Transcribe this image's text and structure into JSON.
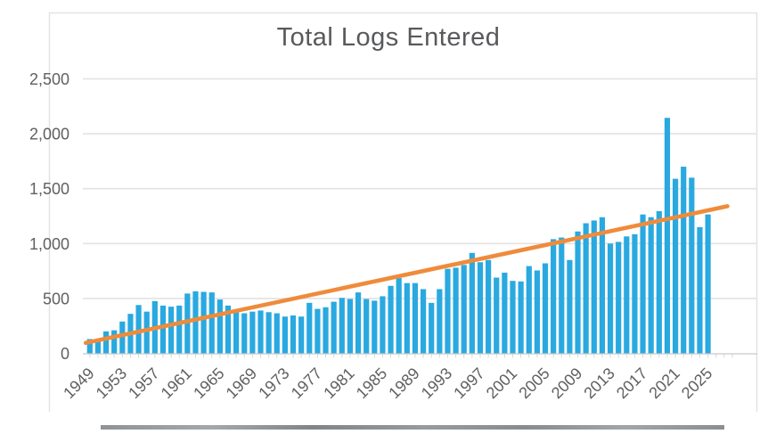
{
  "chart_data": {
    "type": "bar",
    "title": "Total Logs Entered",
    "xlabel": "",
    "ylabel": "",
    "ylim": [
      0,
      2500
    ],
    "grid": "horizontal",
    "legend": "none",
    "y_ticks": [
      0,
      500,
      1000,
      1500,
      2000,
      2500
    ],
    "y_tick_labels": [
      "0",
      "500",
      "1,000",
      "1,500",
      "2,000",
      "2,500"
    ],
    "x_tick_labels": [
      "1949",
      "1953",
      "1957",
      "1961",
      "1965",
      "1969",
      "1973",
      "1977",
      "1981",
      "1985",
      "1989",
      "1993",
      "1997",
      "2001",
      "2005",
      "2009",
      "2013",
      "2017",
      "2021",
      "2025"
    ],
    "categories": [
      1949,
      1950,
      1951,
      1952,
      1953,
      1954,
      1955,
      1956,
      1957,
      1958,
      1959,
      1960,
      1961,
      1962,
      1963,
      1964,
      1965,
      1966,
      1967,
      1968,
      1969,
      1970,
      1971,
      1972,
      1973,
      1974,
      1975,
      1976,
      1977,
      1978,
      1979,
      1980,
      1981,
      1982,
      1983,
      1984,
      1985,
      1986,
      1987,
      1988,
      1989,
      1990,
      1991,
      1992,
      1993,
      1994,
      1995,
      1996,
      1997,
      1998,
      1999,
      2000,
      2001,
      2002,
      2003,
      2004,
      2005,
      2006,
      2007,
      2008,
      2009,
      2010,
      2011,
      2012,
      2013,
      2014,
      2015,
      2016,
      2017,
      2018,
      2019,
      2020,
      2021,
      2022,
      2023,
      2024,
      2025
    ],
    "values": [
      130,
      130,
      200,
      210,
      290,
      360,
      440,
      380,
      475,
      435,
      425,
      435,
      545,
      565,
      560,
      555,
      490,
      435,
      380,
      365,
      380,
      390,
      375,
      365,
      335,
      345,
      335,
      460,
      405,
      420,
      470,
      505,
      495,
      555,
      495,
      480,
      520,
      615,
      685,
      640,
      640,
      585,
      460,
      585,
      770,
      780,
      805,
      915,
      830,
      850,
      690,
      735,
      660,
      655,
      795,
      755,
      820,
      1040,
      1055,
      850,
      1110,
      1185,
      1210,
      1240,
      1000,
      1015,
      1065,
      1085,
      1265,
      1240,
      1295,
      2145,
      1590,
      1700,
      1600,
      1150,
      1265
    ],
    "trend_line": {
      "start_year": 1948.5,
      "start_value": 95,
      "end_year": 2027.4,
      "end_value": 1340
    }
  },
  "colors": {
    "bar": "#29a9e0",
    "trend": "#ef8b3b",
    "title_text": "#58595b",
    "axis_text": "#5f6062",
    "gridline": "#e2e2e2",
    "axis_line": "#c9c9c9",
    "frame_border": "#e3e3e3"
  }
}
